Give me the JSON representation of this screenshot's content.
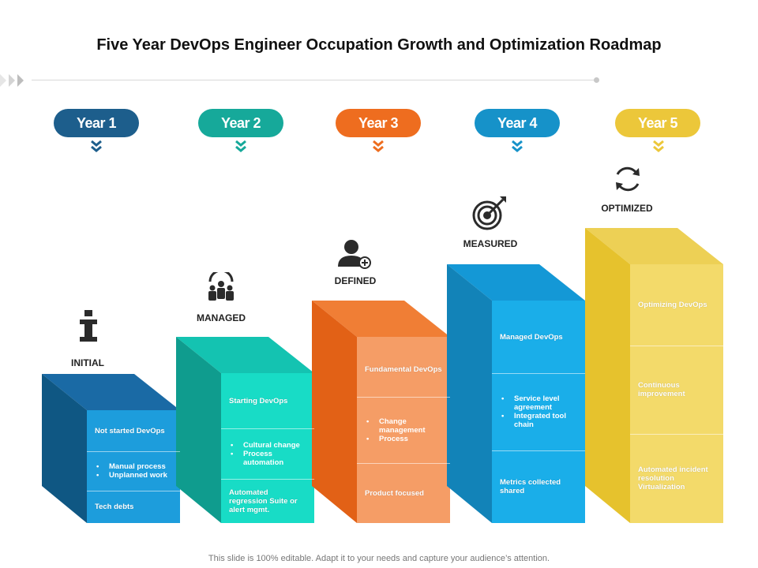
{
  "title": "Five Year DevOps Engineer Occupation Growth and Optimization Roadmap",
  "footer": "This slide is 100% editable. Adapt it to your needs and capture your audience’s attention.",
  "years": [
    {
      "label": "Year 1",
      "color": "#1d5e8c"
    },
    {
      "label": "Year 2",
      "color": "#16a99a"
    },
    {
      "label": "Year 3",
      "color": "#ee6d1f"
    },
    {
      "label": "Year 4",
      "color": "#1692c9"
    },
    {
      "label": "Year 5",
      "color": "#ecc73a"
    }
  ],
  "stages": [
    {
      "label": "INITIAL",
      "icon": "info-icon",
      "rows": [
        {
          "text": "Not started DevOps"
        },
        {
          "bullets": [
            "Manual process",
            "Unplanned work"
          ]
        },
        {
          "text": "Tech debts"
        }
      ]
    },
    {
      "label": "MANAGED",
      "icon": "team-icon",
      "rows": [
        {
          "text": "Starting DevOps"
        },
        {
          "bullets": [
            "Cultural change",
            "Process automation"
          ]
        },
        {
          "text": "Automated regression Suite or alert mgmt."
        }
      ]
    },
    {
      "label": "DEFINED",
      "icon": "add-user-icon",
      "rows": [
        {
          "text": "Fundamental DevOps"
        },
        {
          "bullets": [
            "Change management",
            "Process"
          ]
        },
        {
          "text": "Product focused"
        }
      ]
    },
    {
      "label": "MEASURED",
      "icon": "target-icon",
      "rows": [
        {
          "text": "Managed DevOps"
        },
        {
          "bullets": [
            "Service level agreement",
            "Integrated tool chain"
          ]
        },
        {
          "text": "Metrics collected shared"
        }
      ]
    },
    {
      "label": "OPTIMIZED",
      "icon": "refresh-icon",
      "rows": [
        {
          "text": "Optimizing DevOps"
        },
        {
          "text": "Continuous improvement"
        },
        {
          "text": "Automated incident resolution Virtualization"
        }
      ]
    }
  ]
}
